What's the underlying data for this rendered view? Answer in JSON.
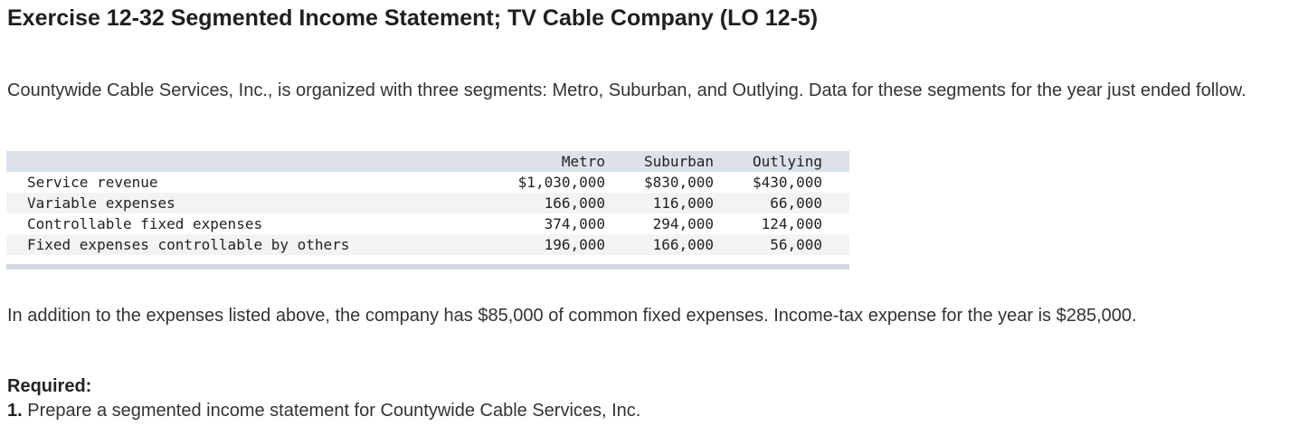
{
  "title": "Exercise 12-32 Segmented Income Statement; TV Cable Company (LO 12-5)",
  "intro": "Countywide Cable Services, Inc., is organized with three segments: Metro, Suburban, and Outlying. Data for these segments for the year just ended follow.",
  "table": {
    "headers": [
      "Metro",
      "Suburban",
      "Outlying"
    ],
    "rows": [
      {
        "label": "Service revenue",
        "metro": "$1,030,000",
        "suburban": "$830,000",
        "outlying": "$430,000"
      },
      {
        "label": "Variable expenses",
        "metro": "166,000",
        "suburban": "116,000",
        "outlying": "66,000"
      },
      {
        "label": "Controllable fixed expenses",
        "metro": "374,000",
        "suburban": "294,000",
        "outlying": "124,000"
      },
      {
        "label": "Fixed expenses controllable by others",
        "metro": "196,000",
        "suburban": "166,000",
        "outlying": "56,000"
      }
    ]
  },
  "additional_info": "In addition to the expenses listed above, the company has $85,000 of common fixed expenses. Income-tax expense for the year is $285,000.",
  "required": {
    "label": "Required:",
    "items": [
      {
        "number": "1.",
        "text": "Prepare a segmented income statement for Countywide Cable Services, Inc."
      }
    ]
  }
}
